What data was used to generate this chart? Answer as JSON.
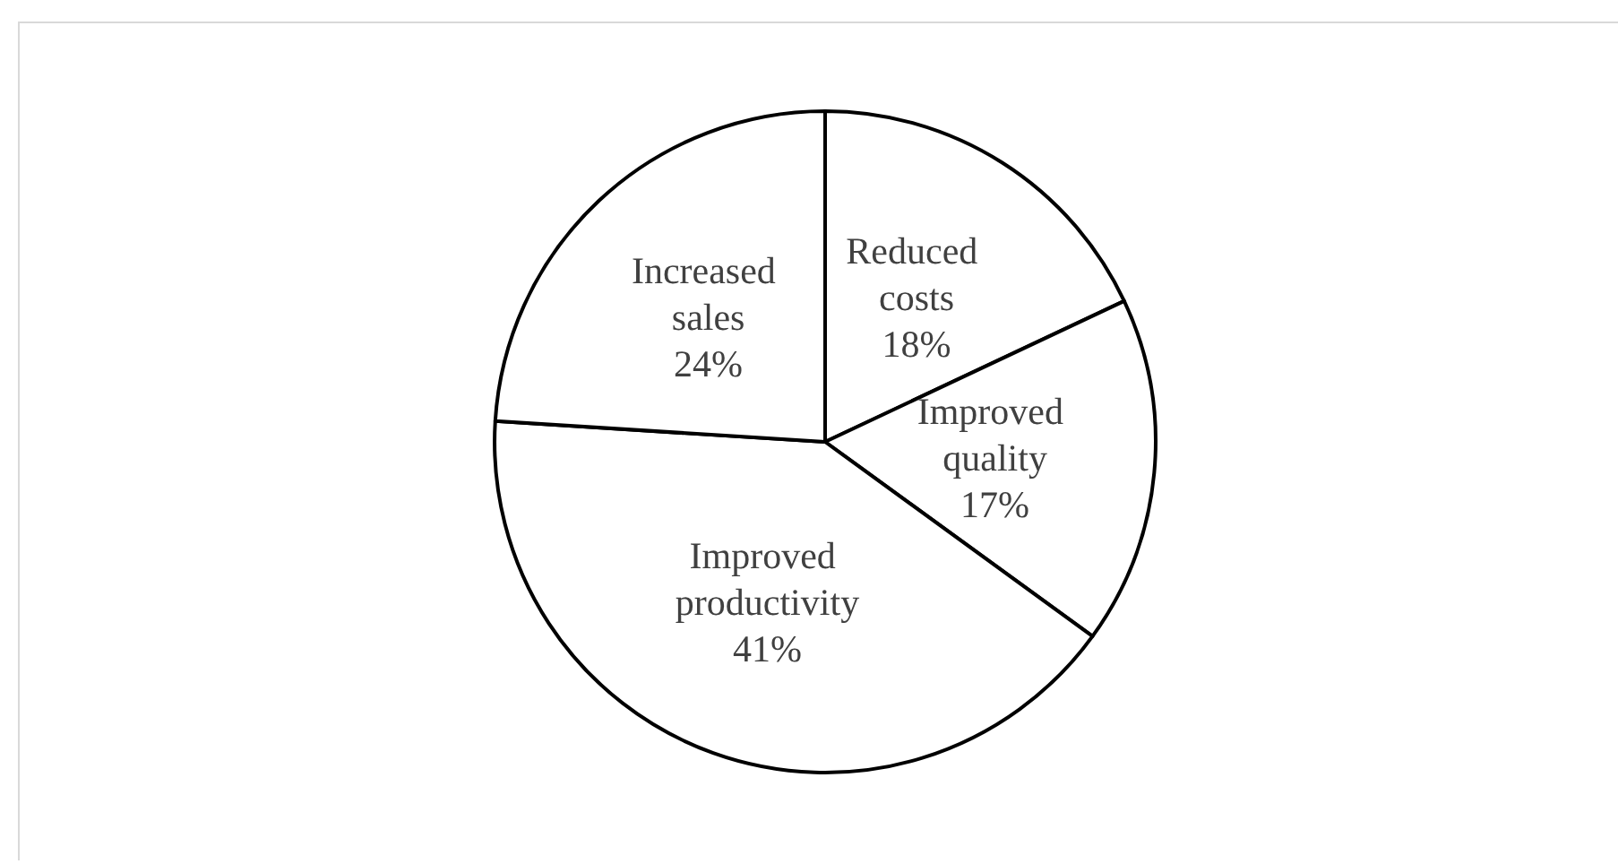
{
  "chart_data": {
    "type": "pie",
    "categories": [
      "Reduced costs",
      "Improved quality",
      "Improved productivity",
      "Increased sales"
    ],
    "values": [
      18,
      17,
      41,
      24
    ],
    "colors": [
      "#ffffff",
      "#ffffff",
      "#ffffff",
      "#ffffff"
    ],
    "value_labels": [
      "18%",
      "17%",
      "41%",
      "24%"
    ],
    "legend": false
  }
}
